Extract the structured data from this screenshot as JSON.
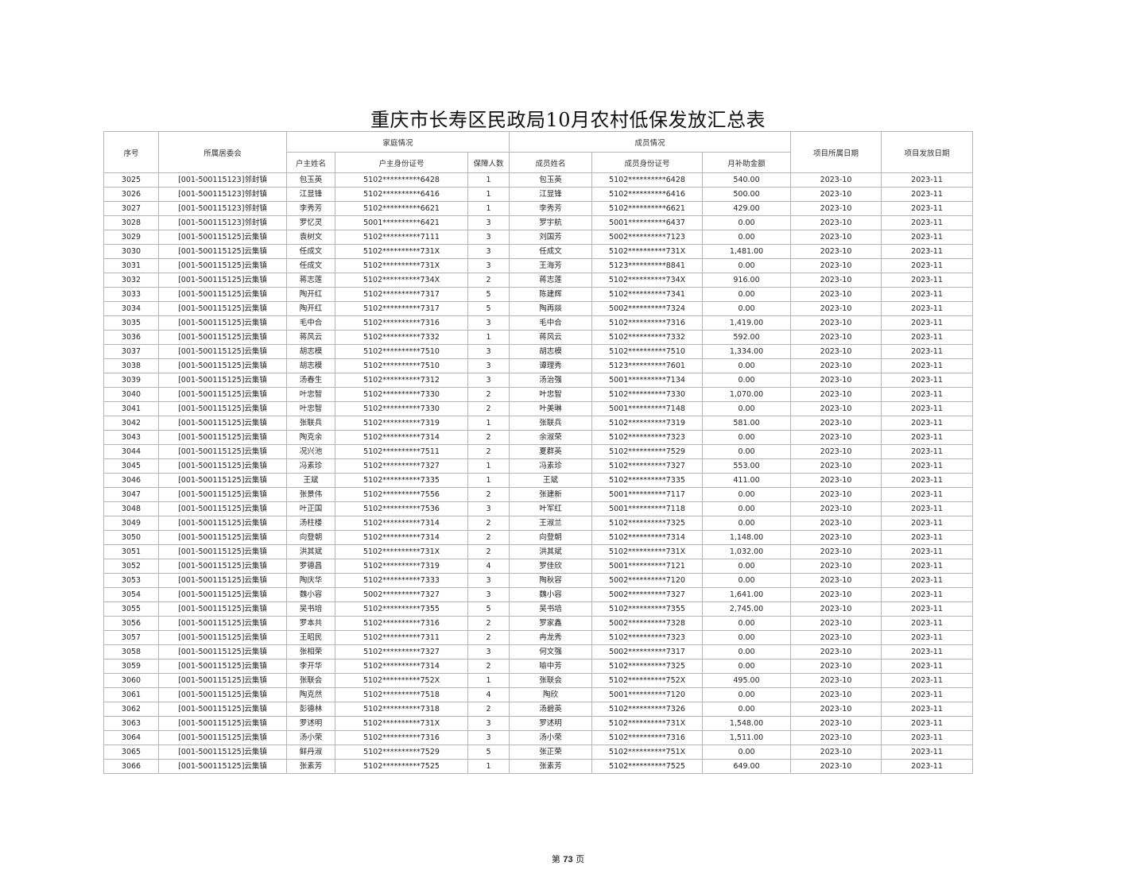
{
  "title": "重庆市长寿区民政局10月农村低保发放汇总表",
  "headers": {
    "seq": "序号",
    "committee": "所属居委会",
    "family_group": "家庭情况",
    "member_group": "成员情况",
    "head_name": "户主姓名",
    "head_id": "户主身份证号",
    "count": "保障人数",
    "member_name": "成员姓名",
    "member_id": "成员身份证号",
    "amount": "月补助金额",
    "belong_date": "项目所属日期",
    "issue_date": "项目发放日期"
  },
  "rows": [
    [
      "3025",
      "[001-500115123]邻封镇",
      "包玉英",
      "5102**********6428",
      "1",
      "包玉英",
      "5102**********6428",
      "540.00",
      "2023-10",
      "2023-11"
    ],
    [
      "3026",
      "[001-500115123]邻封镇",
      "江显锋",
      "5102**********6416",
      "1",
      "江显锋",
      "5102**********6416",
      "500.00",
      "2023-10",
      "2023-11"
    ],
    [
      "3027",
      "[001-500115123]邻封镇",
      "李秀芳",
      "5102**********6621",
      "1",
      "李秀芳",
      "5102**********6621",
      "429.00",
      "2023-10",
      "2023-11"
    ],
    [
      "3028",
      "[001-500115123]邻封镇",
      "罗忆灵",
      "5001**********6421",
      "3",
      "罗宇航",
      "5001**********6437",
      "0.00",
      "2023-10",
      "2023-11"
    ],
    [
      "3029",
      "[001-500115125]云集镇",
      "袁树文",
      "5102**********7111",
      "3",
      "刘国芳",
      "5002**********7123",
      "0.00",
      "2023-10",
      "2023-11"
    ],
    [
      "3030",
      "[001-500115125]云集镇",
      "任成文",
      "5102**********731X",
      "3",
      "任成文",
      "5102**********731X",
      "1,481.00",
      "2023-10",
      "2023-11"
    ],
    [
      "3031",
      "[001-500115125]云集镇",
      "任成文",
      "5102**********731X",
      "3",
      "王海芳",
      "5123**********8841",
      "0.00",
      "2023-10",
      "2023-11"
    ],
    [
      "3032",
      "[001-500115125]云集镇",
      "蒋志莲",
      "5102**********734X",
      "2",
      "蒋志莲",
      "5102**********734X",
      "916.00",
      "2023-10",
      "2023-11"
    ],
    [
      "3033",
      "[001-500115125]云集镇",
      "陶开红",
      "5102**********7317",
      "5",
      "陈建辉",
      "5102**********7341",
      "0.00",
      "2023-10",
      "2023-11"
    ],
    [
      "3034",
      "[001-500115125]云集镇",
      "陶开红",
      "5102**********7317",
      "5",
      "陶再燚",
      "5002**********7324",
      "0.00",
      "2023-10",
      "2023-11"
    ],
    [
      "3035",
      "[001-500115125]云集镇",
      "毛中合",
      "5102**********7316",
      "3",
      "毛中合",
      "5102**********7316",
      "1,419.00",
      "2023-10",
      "2023-11"
    ],
    [
      "3036",
      "[001-500115125]云集镇",
      "蒋风云",
      "5102**********7332",
      "1",
      "蒋风云",
      "5102**********7332",
      "592.00",
      "2023-10",
      "2023-11"
    ],
    [
      "3037",
      "[001-500115125]云集镇",
      "胡志模",
      "5102**********7510",
      "3",
      "胡志模",
      "5102**********7510",
      "1,334.00",
      "2023-10",
      "2023-11"
    ],
    [
      "3038",
      "[001-500115125]云集镇",
      "胡志模",
      "5102**********7510",
      "3",
      "谭理秀",
      "5123**********7601",
      "0.00",
      "2023-10",
      "2023-11"
    ],
    [
      "3039",
      "[001-500115125]云集镇",
      "汤春生",
      "5102**********7312",
      "3",
      "汤治强",
      "5001**********7134",
      "0.00",
      "2023-10",
      "2023-11"
    ],
    [
      "3040",
      "[001-500115125]云集镇",
      "叶忠智",
      "5102**********7330",
      "2",
      "叶忠智",
      "5102**********7330",
      "1,070.00",
      "2023-10",
      "2023-11"
    ],
    [
      "3041",
      "[001-500115125]云集镇",
      "叶忠智",
      "5102**********7330",
      "2",
      "叶美琳",
      "5001**********7148",
      "0.00",
      "2023-10",
      "2023-11"
    ],
    [
      "3042",
      "[001-500115125]云集镇",
      "张联兵",
      "5102**********7319",
      "1",
      "张联兵",
      "5102**********7319",
      "581.00",
      "2023-10",
      "2023-11"
    ],
    [
      "3043",
      "[001-500115125]云集镇",
      "陶克余",
      "5102**********7314",
      "2",
      "余淑荣",
      "5102**********7323",
      "0.00",
      "2023-10",
      "2023-11"
    ],
    [
      "3044",
      "[001-500115125]云集镇",
      "况兴池",
      "5102**********7511",
      "2",
      "夏群英",
      "5102**********7529",
      "0.00",
      "2023-10",
      "2023-11"
    ],
    [
      "3045",
      "[001-500115125]云集镇",
      "冯素珍",
      "5102**********7327",
      "1",
      "冯素珍",
      "5102**********7327",
      "553.00",
      "2023-10",
      "2023-11"
    ],
    [
      "3046",
      "[001-500115125]云集镇",
      "王斌",
      "5102**********7335",
      "1",
      "王斌",
      "5102**********7335",
      "411.00",
      "2023-10",
      "2023-11"
    ],
    [
      "3047",
      "[001-500115125]云集镇",
      "张景伟",
      "5102**********7556",
      "2",
      "张建新",
      "5001**********7117",
      "0.00",
      "2023-10",
      "2023-11"
    ],
    [
      "3048",
      "[001-500115125]云集镇",
      "叶正国",
      "5102**********7536",
      "3",
      "叶军红",
      "5001**********7118",
      "0.00",
      "2023-10",
      "2023-11"
    ],
    [
      "3049",
      "[001-500115125]云集镇",
      "汤柱楼",
      "5102**********7314",
      "2",
      "王淑兰",
      "5102**********7325",
      "0.00",
      "2023-10",
      "2023-11"
    ],
    [
      "3050",
      "[001-500115125]云集镇",
      "向登朝",
      "5102**********7314",
      "2",
      "向登朝",
      "5102**********7314",
      "1,148.00",
      "2023-10",
      "2023-11"
    ],
    [
      "3051",
      "[001-500115125]云集镇",
      "洪其斌",
      "5102**********731X",
      "2",
      "洪其斌",
      "5102**********731X",
      "1,032.00",
      "2023-10",
      "2023-11"
    ],
    [
      "3052",
      "[001-500115125]云集镇",
      "罗德昌",
      "5102**********7319",
      "4",
      "罗佳欣",
      "5001**********7121",
      "0.00",
      "2023-10",
      "2023-11"
    ],
    [
      "3053",
      "[001-500115125]云集镇",
      "陶庆华",
      "5102**********7333",
      "3",
      "陶秋容",
      "5002**********7120",
      "0.00",
      "2023-10",
      "2023-11"
    ],
    [
      "3054",
      "[001-500115125]云集镇",
      "魏小容",
      "5002**********7327",
      "3",
      "魏小容",
      "5002**********7327",
      "1,641.00",
      "2023-10",
      "2023-11"
    ],
    [
      "3055",
      "[001-500115125]云集镇",
      "吴书培",
      "5102**********7355",
      "5",
      "吴书培",
      "5102**********7355",
      "2,745.00",
      "2023-10",
      "2023-11"
    ],
    [
      "3056",
      "[001-500115125]云集镇",
      "罗本共",
      "5102**********7316",
      "2",
      "罗家鑫",
      "5002**********7328",
      "0.00",
      "2023-10",
      "2023-11"
    ],
    [
      "3057",
      "[001-500115125]云集镇",
      "王昭民",
      "5102**********7311",
      "2",
      "冉龙秀",
      "5102**********7323",
      "0.00",
      "2023-10",
      "2023-11"
    ],
    [
      "3058",
      "[001-500115125]云集镇",
      "张相荣",
      "5102**********7327",
      "3",
      "何文强",
      "5002**********7317",
      "0.00",
      "2023-10",
      "2023-11"
    ],
    [
      "3059",
      "[001-500115125]云集镇",
      "李开华",
      "5102**********7314",
      "2",
      "喻中芳",
      "5102**********7325",
      "0.00",
      "2023-10",
      "2023-11"
    ],
    [
      "3060",
      "[001-500115125]云集镇",
      "张联会",
      "5102**********752X",
      "1",
      "张联会",
      "5102**********752X",
      "495.00",
      "2023-10",
      "2023-11"
    ],
    [
      "3061",
      "[001-500115125]云集镇",
      "陶克然",
      "5102**********7518",
      "4",
      "陶欣",
      "5001**********7120",
      "0.00",
      "2023-10",
      "2023-11"
    ],
    [
      "3062",
      "[001-500115125]云集镇",
      "彭德林",
      "5102**********7318",
      "2",
      "汤碧英",
      "5102**********7326",
      "0.00",
      "2023-10",
      "2023-11"
    ],
    [
      "3063",
      "[001-500115125]云集镇",
      "罗述明",
      "5102**********731X",
      "3",
      "罗述明",
      "5102**********731X",
      "1,548.00",
      "2023-10",
      "2023-11"
    ],
    [
      "3064",
      "[001-500115125]云集镇",
      "汤小荣",
      "5102**********7316",
      "3",
      "汤小荣",
      "5102**********7316",
      "1,511.00",
      "2023-10",
      "2023-11"
    ],
    [
      "3065",
      "[001-500115125]云集镇",
      "鲜丹淑",
      "5102**********7529",
      "5",
      "张正荣",
      "5102**********751X",
      "0.00",
      "2023-10",
      "2023-11"
    ],
    [
      "3066",
      "[001-500115125]云集镇",
      "张素芳",
      "5102**********7525",
      "1",
      "张素芳",
      "5102**********7525",
      "649.00",
      "2023-10",
      "2023-11"
    ]
  ],
  "footer": {
    "prefix": "第 ",
    "page": "73",
    "suffix": " 页"
  }
}
